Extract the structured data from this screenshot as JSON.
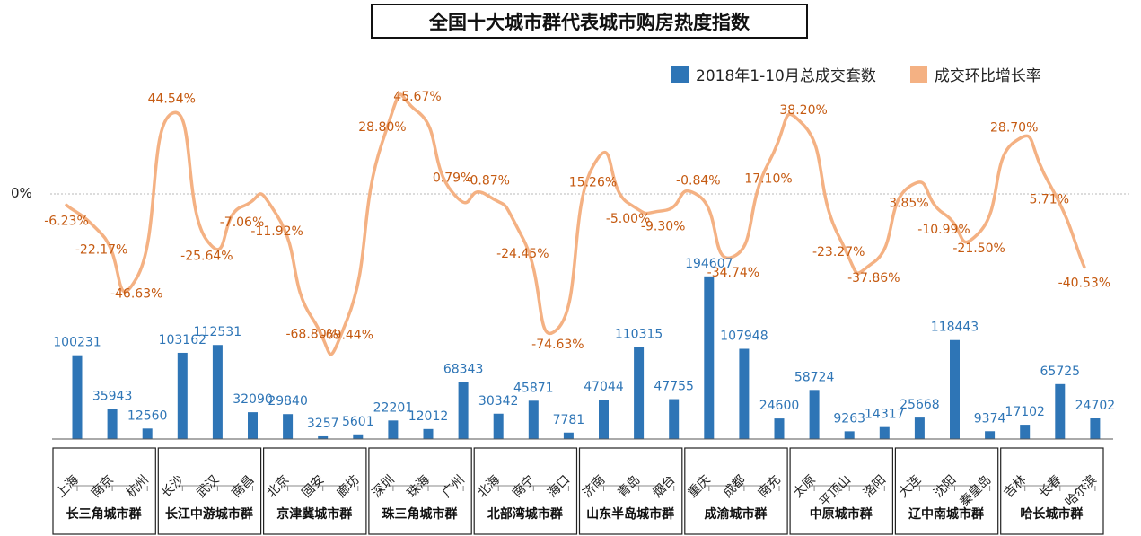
{
  "title": "全国十大城市群代表城市购房热度指数",
  "zero_label": "0%",
  "colors": {
    "bar": "#2e75b6",
    "line": "#f4b183",
    "bar_label": "#2e75b6",
    "line_label": "#c55a11"
  },
  "chart_data": {
    "type": "bar+line",
    "title": "全国十大城市群代表城市购房热度指数",
    "legend": [
      "2018年1-10月总成交套数",
      "成交环比增长率"
    ],
    "legend_position": "top-right",
    "categories": [
      "上海",
      "南京",
      "杭州",
      "长沙",
      "武汉",
      "南昌",
      "北京",
      "固安",
      "廊坊",
      "深圳",
      "珠海",
      "广州",
      "北海",
      "南宁",
      "海口",
      "济南",
      "青岛",
      "烟台",
      "重庆",
      "成都",
      "南充",
      "太原",
      "平顶山",
      "洛阳",
      "大连",
      "沈阳",
      "秦皇岛",
      "吉林",
      "长春",
      "哈尔滨"
    ],
    "groups": [
      {
        "name": "长三角城市群",
        "count": 3
      },
      {
        "name": "长江中游城市群",
        "count": 3
      },
      {
        "name": "京津冀城市群",
        "count": 3
      },
      {
        "name": "珠三角城市群",
        "count": 3
      },
      {
        "name": "北部湾城市群",
        "count": 3
      },
      {
        "name": "山东半岛城市群",
        "count": 3
      },
      {
        "name": "成渝城市群",
        "count": 3
      },
      {
        "name": "中原城市群",
        "count": 3
      },
      {
        "name": "辽中南城市群",
        "count": 3
      },
      {
        "name": "哈长城市群",
        "count": 3
      }
    ],
    "series": [
      {
        "name": "2018年1-10月总成交套数",
        "type": "bar",
        "values": [
          100231,
          35943,
          12560,
          103162,
          112531,
          32090,
          29840,
          3257,
          5601,
          22201,
          12012,
          68343,
          30342,
          45871,
          7781,
          47044,
          110315,
          47755,
          194607,
          107948,
          24600,
          58724,
          9263,
          14317,
          25668,
          118443,
          9374,
          17102,
          65725,
          24702
        ]
      },
      {
        "name": "成交环比增长率",
        "type": "line",
        "values": [
          -6.23,
          -22.17,
          -46.63,
          44.54,
          -25.64,
          -7.06,
          -11.92,
          -68.8,
          -69.44,
          28.8,
          45.67,
          0.79,
          -0.87,
          -24.45,
          -74.63,
          15.26,
          -5.0,
          -9.3,
          -0.84,
          -34.74,
          17.1,
          38.2,
          -23.27,
          -37.86,
          3.85,
          -10.99,
          -21.5,
          28.7,
          5.71,
          -40.53
        ],
        "labels": [
          "-6.23%",
          "-22.17%",
          "-46.63%",
          "44.54%",
          "-25.64%",
          "-7.06%",
          "-11.92%",
          "-68.80%",
          "-69.44%",
          "28.80%",
          "45.67%",
          "0.79%",
          "-0.87%",
          "-24.45%",
          "-74.63%",
          "15.26%",
          "-5.00%",
          "-9.30%",
          "-0.84%",
          "-34.74%",
          "17.10%",
          "38.20%",
          "-23.27%",
          "-37.86%",
          "3.85%",
          "-10.99%",
          "-21.50%",
          "28.70%",
          "5.71%",
          "-40.53%"
        ]
      }
    ]
  }
}
